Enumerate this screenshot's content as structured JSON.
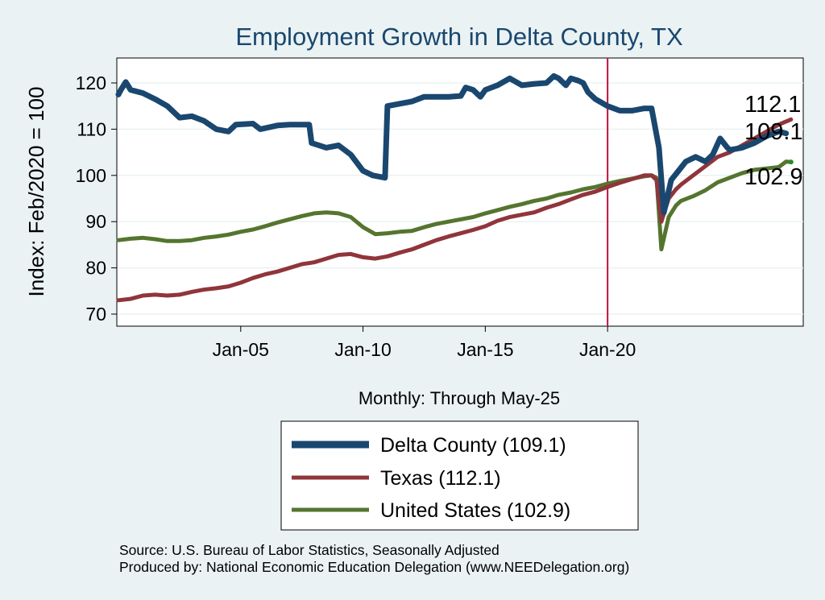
{
  "chart_data": {
    "type": "line",
    "title": "Employment Growth in Delta  County, TX",
    "xlabel": "Monthly: Through May-25",
    "ylabel": "Index: Feb/2020 = 100",
    "ylim": [
      67,
      124
    ],
    "yticks": [
      70,
      80,
      90,
      100,
      110,
      120
    ],
    "xlim": [
      2000.0,
      2028.0
    ],
    "xticks": [
      {
        "value": 2005.0,
        "label": "Jan-05"
      },
      {
        "value": 2010.0,
        "label": "Jan-10"
      },
      {
        "value": 2015.0,
        "label": "Jan-15"
      },
      {
        "value": 2020.0,
        "label": "Jan-20"
      }
    ],
    "vline": 2020.0,
    "grid": true,
    "series": [
      {
        "name": "Delta County",
        "legend": "Delta  County (109.1)",
        "end_label": "109.1",
        "color": "#1a476f",
        "points": [
          [
            2000.0,
            117.5
          ],
          [
            2000.1,
            118.5
          ],
          [
            2000.3,
            120.2
          ],
          [
            2000.5,
            118.5
          ],
          [
            2001.0,
            117.8
          ],
          [
            2001.5,
            116.5
          ],
          [
            2002.0,
            115.0
          ],
          [
            2002.5,
            112.5
          ],
          [
            2003.0,
            112.8
          ],
          [
            2003.5,
            111.8
          ],
          [
            2004.0,
            110.0
          ],
          [
            2004.5,
            109.5
          ],
          [
            2004.8,
            111.0
          ],
          [
            2005.5,
            111.2
          ],
          [
            2005.8,
            110.0
          ],
          [
            2006.5,
            110.8
          ],
          [
            2007.0,
            111.0
          ],
          [
            2007.8,
            111.0
          ],
          [
            2007.9,
            107.0
          ],
          [
            2008.5,
            106.0
          ],
          [
            2009.0,
            106.5
          ],
          [
            2009.5,
            104.5
          ],
          [
            2010.0,
            101.0
          ],
          [
            2010.4,
            100.0
          ],
          [
            2010.9,
            99.5
          ],
          [
            2011.0,
            115.0
          ],
          [
            2011.5,
            115.5
          ],
          [
            2012.0,
            116.0
          ],
          [
            2012.5,
            117.0
          ],
          [
            2013.0,
            117.0
          ],
          [
            2013.5,
            117.0
          ],
          [
            2014.0,
            117.2
          ],
          [
            2014.2,
            119.0
          ],
          [
            2014.5,
            118.5
          ],
          [
            2014.8,
            117.0
          ],
          [
            2015.0,
            118.5
          ],
          [
            2015.5,
            119.5
          ],
          [
            2016.0,
            121.0
          ],
          [
            2016.5,
            119.5
          ],
          [
            2017.0,
            119.8
          ],
          [
            2017.5,
            120.0
          ],
          [
            2017.8,
            121.5
          ],
          [
            2018.0,
            121.0
          ],
          [
            2018.3,
            119.5
          ],
          [
            2018.5,
            121.0
          ],
          [
            2018.8,
            120.5
          ],
          [
            2019.0,
            120.0
          ],
          [
            2019.2,
            118.0
          ],
          [
            2019.5,
            116.5
          ],
          [
            2020.0,
            115.0
          ],
          [
            2020.5,
            114.0
          ],
          [
            2021.0,
            114.0
          ],
          [
            2021.5,
            114.5
          ],
          [
            2021.8,
            114.5
          ],
          [
            2022.1,
            106.0
          ],
          [
            2022.3,
            92.0
          ],
          [
            2022.6,
            99.0
          ],
          [
            2022.9,
            101.0
          ],
          [
            2023.2,
            103.0
          ],
          [
            2023.6,
            104.0
          ],
          [
            2024.0,
            103.0
          ],
          [
            2024.3,
            104.5
          ],
          [
            2024.6,
            108.0
          ],
          [
            2024.9,
            106.0
          ],
          [
            2025.0,
            105.5
          ],
          [
            2025.5,
            106.0
          ],
          [
            2026.0,
            107.0
          ],
          [
            2026.5,
            108.5
          ],
          [
            2027.0,
            109.5
          ],
          [
            2027.3,
            109.1
          ]
        ]
      },
      {
        "name": "Texas",
        "legend": "Texas (112.1)",
        "end_label": "112.1",
        "color": "#90353b",
        "points": [
          [
            2000.0,
            73.0
          ],
          [
            2000.5,
            73.3
          ],
          [
            2001.0,
            74.0
          ],
          [
            2001.5,
            74.2
          ],
          [
            2002.0,
            74.0
          ],
          [
            2002.5,
            74.2
          ],
          [
            2003.0,
            74.8
          ],
          [
            2003.5,
            75.3
          ],
          [
            2004.0,
            75.6
          ],
          [
            2004.5,
            76.0
          ],
          [
            2005.0,
            76.8
          ],
          [
            2005.5,
            77.8
          ],
          [
            2006.0,
            78.6
          ],
          [
            2006.5,
            79.2
          ],
          [
            2007.0,
            80.0
          ],
          [
            2007.5,
            80.8
          ],
          [
            2008.0,
            81.2
          ],
          [
            2008.5,
            82.0
          ],
          [
            2009.0,
            82.8
          ],
          [
            2009.5,
            83.0
          ],
          [
            2010.0,
            82.3
          ],
          [
            2010.5,
            82.0
          ],
          [
            2011.0,
            82.5
          ],
          [
            2011.5,
            83.3
          ],
          [
            2012.0,
            84.0
          ],
          [
            2012.5,
            85.0
          ],
          [
            2013.0,
            86.0
          ],
          [
            2013.5,
            86.8
          ],
          [
            2014.0,
            87.5
          ],
          [
            2014.5,
            88.2
          ],
          [
            2015.0,
            89.0
          ],
          [
            2015.5,
            90.2
          ],
          [
            2016.0,
            91.0
          ],
          [
            2016.5,
            91.5
          ],
          [
            2017.0,
            92.0
          ],
          [
            2017.5,
            93.0
          ],
          [
            2018.0,
            93.8
          ],
          [
            2018.5,
            94.8
          ],
          [
            2019.0,
            95.8
          ],
          [
            2019.5,
            96.5
          ],
          [
            2020.0,
            97.5
          ],
          [
            2020.5,
            98.4
          ],
          [
            2021.0,
            99.2
          ],
          [
            2021.5,
            100.0
          ],
          [
            2021.8,
            100.0
          ],
          [
            2022.0,
            99.0
          ],
          [
            2022.2,
            90.0
          ],
          [
            2022.5,
            95.0
          ],
          [
            2022.8,
            97.0
          ],
          [
            2023.0,
            98.0
          ],
          [
            2023.5,
            100.0
          ],
          [
            2024.0,
            102.0
          ],
          [
            2024.5,
            104.0
          ],
          [
            2025.0,
            105.0
          ],
          [
            2025.5,
            106.5
          ],
          [
            2026.0,
            108.0
          ],
          [
            2026.5,
            109.5
          ],
          [
            2027.0,
            111.0
          ],
          [
            2027.5,
            112.1
          ]
        ]
      },
      {
        "name": "United States",
        "legend": "United States (102.9)",
        "end_label": "102.9",
        "color": "#55752f",
        "points": [
          [
            2000.0,
            86.0
          ],
          [
            2000.5,
            86.3
          ],
          [
            2001.0,
            86.5
          ],
          [
            2001.5,
            86.2
          ],
          [
            2002.0,
            85.8
          ],
          [
            2002.5,
            85.8
          ],
          [
            2003.0,
            86.0
          ],
          [
            2003.5,
            86.5
          ],
          [
            2004.0,
            86.8
          ],
          [
            2004.5,
            87.2
          ],
          [
            2005.0,
            87.8
          ],
          [
            2005.5,
            88.3
          ],
          [
            2006.0,
            89.0
          ],
          [
            2006.5,
            89.8
          ],
          [
            2007.0,
            90.5
          ],
          [
            2007.5,
            91.2
          ],
          [
            2008.0,
            91.8
          ],
          [
            2008.5,
            92.0
          ],
          [
            2009.0,
            91.8
          ],
          [
            2009.5,
            91.0
          ],
          [
            2010.0,
            88.8
          ],
          [
            2010.5,
            87.3
          ],
          [
            2011.0,
            87.5
          ],
          [
            2011.5,
            87.8
          ],
          [
            2012.0,
            88.0
          ],
          [
            2012.5,
            88.8
          ],
          [
            2013.0,
            89.5
          ],
          [
            2013.5,
            90.0
          ],
          [
            2014.0,
            90.5
          ],
          [
            2014.5,
            91.0
          ],
          [
            2015.0,
            91.8
          ],
          [
            2015.5,
            92.5
          ],
          [
            2016.0,
            93.2
          ],
          [
            2016.5,
            93.8
          ],
          [
            2017.0,
            94.5
          ],
          [
            2017.5,
            95.0
          ],
          [
            2018.0,
            95.8
          ],
          [
            2018.5,
            96.3
          ],
          [
            2019.0,
            97.0
          ],
          [
            2019.5,
            97.5
          ],
          [
            2020.0,
            98.2
          ],
          [
            2020.5,
            98.8
          ],
          [
            2021.0,
            99.3
          ],
          [
            2021.5,
            99.8
          ],
          [
            2021.8,
            100.0
          ],
          [
            2022.0,
            99.5
          ],
          [
            2022.2,
            84.0
          ],
          [
            2022.5,
            91.0
          ],
          [
            2022.8,
            93.5
          ],
          [
            2023.0,
            94.5
          ],
          [
            2023.5,
            95.5
          ],
          [
            2024.0,
            96.8
          ],
          [
            2024.5,
            98.5
          ],
          [
            2025.0,
            99.5
          ],
          [
            2025.5,
            100.5
          ],
          [
            2026.0,
            101.2
          ],
          [
            2026.5,
            101.5
          ],
          [
            2027.0,
            101.8
          ],
          [
            2027.3,
            103.0
          ],
          [
            2027.5,
            102.9
          ]
        ]
      }
    ]
  },
  "footer": {
    "source": "Source: U.S. Bureau of Labor Statistics, Seasonally Adjusted",
    "produced_by": "Produced by: National Economic Education Delegation (www.NEEDelegation.org)"
  }
}
